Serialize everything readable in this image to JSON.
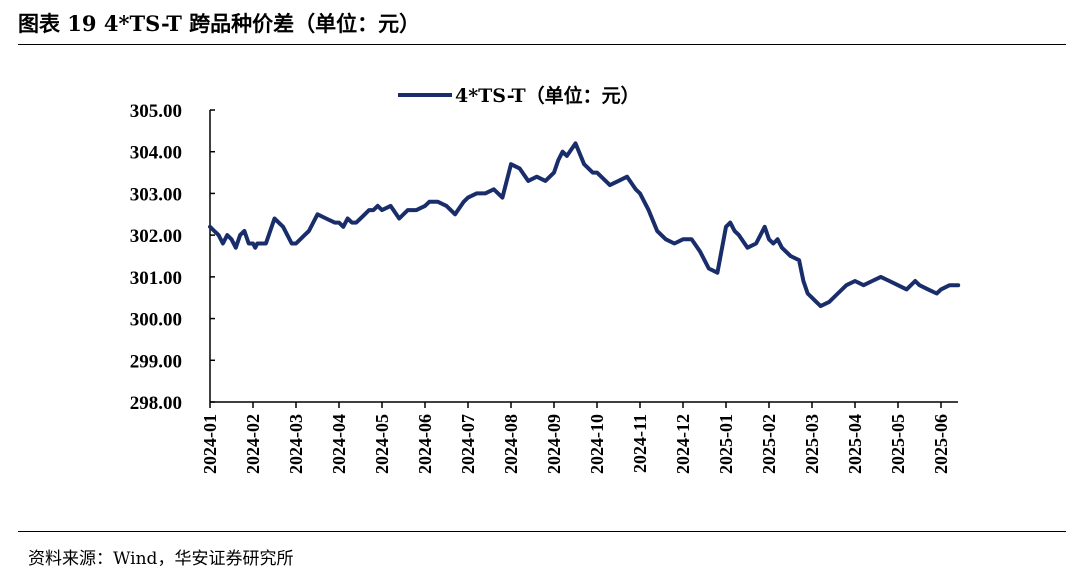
{
  "header": {
    "title": "图表 19 4*TS-T 跨品种价差（单位：元）"
  },
  "footer": {
    "source": "资料来源：Wind，华安证券研究所"
  },
  "colors": {
    "series": "#1a2d6b",
    "axis": "#000000"
  },
  "chart_data": {
    "type": "line",
    "title": "",
    "xlabel": "",
    "ylabel": "",
    "ylim": [
      298,
      305
    ],
    "y_ticks": [
      "305.00",
      "304.00",
      "303.00",
      "302.00",
      "301.00",
      "300.00",
      "299.00",
      "298.00"
    ],
    "x_ticks": [
      "2024-01",
      "2024-02",
      "2024-03",
      "2024-04",
      "2024-05",
      "2024-06",
      "2024-07",
      "2024-08",
      "2024-09",
      "2024-10",
      "2024-11",
      "2024-12",
      "2025-01",
      "2025-02",
      "2025-03",
      "2025-04",
      "2025-05",
      "2025-06"
    ],
    "legend": {
      "label": "4*TS-T（单位：元）",
      "position": "top-center"
    },
    "grid": false,
    "series": [
      {
        "name": "4*TS-T（单位：元）",
        "x": [
          0.0,
          0.1,
          0.2,
          0.3,
          0.4,
          0.5,
          0.6,
          0.7,
          0.8,
          0.9,
          1.0,
          1.05,
          1.1,
          1.2,
          1.3,
          1.5,
          1.7,
          1.9,
          2.0,
          2.1,
          2.2,
          2.3,
          2.4,
          2.5,
          2.7,
          2.9,
          3.0,
          3.1,
          3.2,
          3.3,
          3.4,
          3.5,
          3.6,
          3.7,
          3.8,
          3.9,
          4.0,
          4.2,
          4.4,
          4.6,
          4.8,
          5.0,
          5.1,
          5.3,
          5.5,
          5.7,
          5.9,
          6.0,
          6.2,
          6.4,
          6.6,
          6.8,
          7.0,
          7.2,
          7.4,
          7.6,
          7.8,
          8.0,
          8.1,
          8.2,
          8.3,
          8.5,
          8.7,
          8.9,
          9.0,
          9.3,
          9.5,
          9.7,
          9.9,
          10.0,
          10.2,
          10.4,
          10.6,
          10.8,
          11.0,
          11.2,
          11.4,
          11.6,
          11.8,
          12.0,
          12.1,
          12.2,
          12.3,
          12.5,
          12.7,
          12.9,
          13.0,
          13.1,
          13.2,
          13.3,
          13.5,
          13.7,
          13.8,
          13.9,
          14.0,
          14.1,
          14.2,
          14.4,
          14.6,
          14.8,
          15.0,
          15.2,
          15.4,
          15.6,
          15.8,
          16.0,
          16.2,
          16.4,
          16.5,
          16.7,
          16.9,
          17.0,
          17.2,
          17.4
        ],
        "values": [
          302.2,
          302.1,
          302.0,
          301.8,
          302.0,
          301.9,
          301.7,
          302.0,
          302.1,
          301.8,
          301.8,
          301.7,
          301.8,
          301.8,
          301.8,
          302.4,
          302.2,
          301.8,
          301.8,
          301.9,
          302.0,
          302.1,
          302.3,
          302.5,
          302.4,
          302.3,
          302.3,
          302.2,
          302.4,
          302.3,
          302.3,
          302.4,
          302.5,
          302.6,
          302.6,
          302.7,
          302.6,
          302.7,
          302.4,
          302.6,
          302.6,
          302.7,
          302.8,
          302.8,
          302.7,
          302.5,
          302.8,
          302.9,
          303.0,
          303.0,
          303.1,
          302.9,
          303.7,
          303.6,
          303.3,
          303.4,
          303.3,
          303.5,
          303.8,
          304.0,
          303.9,
          304.2,
          303.7,
          303.5,
          303.5,
          303.2,
          303.3,
          303.4,
          303.1,
          303.0,
          302.6,
          302.1,
          301.9,
          301.8,
          301.9,
          301.9,
          301.6,
          301.2,
          301.1,
          302.2,
          302.3,
          302.1,
          302.0,
          301.7,
          301.8,
          302.2,
          301.9,
          301.8,
          301.9,
          301.7,
          301.5,
          301.4,
          300.9,
          300.6,
          300.5,
          300.4,
          300.3,
          300.4,
          300.6,
          300.8,
          300.9,
          300.8,
          300.9,
          301.0,
          300.9,
          300.8,
          300.7,
          300.9,
          300.8,
          300.7,
          300.6,
          300.7,
          300.8,
          300.8
        ]
      }
    ]
  }
}
